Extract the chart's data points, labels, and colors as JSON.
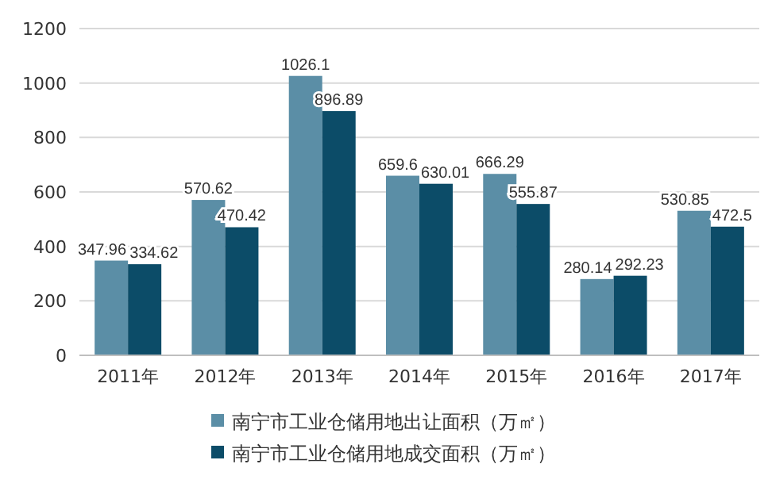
{
  "chart_data": {
    "type": "bar",
    "categories": [
      "2011年",
      "2012年",
      "2013年",
      "2014年",
      "2015年",
      "2016年",
      "2017年"
    ],
    "series": [
      {
        "name": "南宁市工业仓储用地出让面积（万㎡）",
        "color": "#5b8ea6",
        "values": [
          347.96,
          570.62,
          1026.1,
          659.6,
          666.29,
          280.14,
          530.85
        ]
      },
      {
        "name": "南宁市工业仓储用地成交面积（万㎡）",
        "color": "#0c4c68",
        "values": [
          334.62,
          470.42,
          896.89,
          630.01,
          555.87,
          292.23,
          472.5
        ]
      }
    ],
    "ylim": [
      0,
      1200
    ],
    "yticks": [
      0,
      200,
      400,
      600,
      800,
      1000,
      1200
    ],
    "grid": "y",
    "legend": "bottom",
    "data_labels": true
  }
}
